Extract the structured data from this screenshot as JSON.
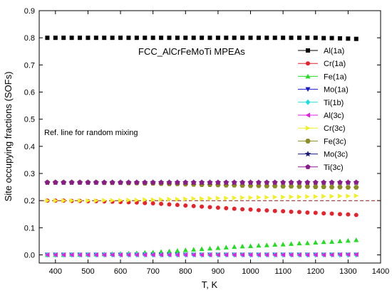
{
  "chart_data": {
    "type": "scatter",
    "title": "FCC_AlCrFeMoTi MPEAs",
    "xlabel": "T, K",
    "ylabel": "Site occupying fractions (SOFs)",
    "xlim": [
      350,
      1400
    ],
    "ylim": [
      -0.03,
      0.9
    ],
    "xticks": [
      400,
      500,
      600,
      700,
      800,
      900,
      1000,
      1100,
      1200,
      1300,
      1400
    ],
    "yticks": [
      0.0,
      0.1,
      0.2,
      0.3,
      0.4,
      0.5,
      0.6,
      0.7,
      0.8,
      0.9
    ],
    "grid": false,
    "legend_position": "top-right",
    "x": [
      375,
      400,
      425,
      450,
      475,
      500,
      525,
      550,
      575,
      600,
      625,
      650,
      675,
      700,
      725,
      750,
      775,
      800,
      825,
      850,
      875,
      900,
      925,
      950,
      975,
      1000,
      1025,
      1050,
      1075,
      1100,
      1125,
      1150,
      1175,
      1200,
      1225,
      1250,
      1275,
      1300,
      1325
    ],
    "reference_line": {
      "label": "Ref. line for random mixing",
      "y": 0.2,
      "color": "#8b1a1a"
    },
    "series": [
      {
        "name": "Al(1a)",
        "marker": "square",
        "color": "#000000",
        "values": [
          0.8,
          0.8,
          0.8,
          0.8,
          0.8,
          0.8,
          0.8,
          0.8,
          0.8,
          0.8,
          0.8,
          0.8,
          0.8,
          0.8,
          0.8,
          0.8,
          0.8,
          0.8,
          0.8,
          0.8,
          0.8,
          0.8,
          0.8,
          0.8,
          0.8,
          0.8,
          0.8,
          0.8,
          0.8,
          0.8,
          0.8,
          0.8,
          0.8,
          0.8,
          0.799,
          0.799,
          0.798,
          0.797,
          0.796
        ]
      },
      {
        "name": "Cr(1a)",
        "marker": "circle",
        "color": "#e8222a",
        "values": [
          0.2,
          0.2,
          0.2,
          0.199,
          0.199,
          0.198,
          0.198,
          0.197,
          0.196,
          0.195,
          0.194,
          0.193,
          0.191,
          0.19,
          0.188,
          0.186,
          0.184,
          0.182,
          0.18,
          0.178,
          0.176,
          0.174,
          0.172,
          0.17,
          0.168,
          0.167,
          0.165,
          0.164,
          0.162,
          0.161,
          0.159,
          0.158,
          0.156,
          0.155,
          0.153,
          0.152,
          0.15,
          0.149,
          0.147
        ]
      },
      {
        "name": "Fe(1a)",
        "marker": "triangle-up",
        "color": "#22dd22",
        "values": [
          0.0,
          0.0,
          0.0,
          0.001,
          0.001,
          0.002,
          0.002,
          0.003,
          0.004,
          0.005,
          0.006,
          0.007,
          0.009,
          0.01,
          0.012,
          0.014,
          0.016,
          0.018,
          0.02,
          0.022,
          0.024,
          0.026,
          0.028,
          0.03,
          0.032,
          0.033,
          0.035,
          0.036,
          0.038,
          0.039,
          0.041,
          0.043,
          0.044,
          0.046,
          0.048,
          0.049,
          0.051,
          0.053,
          0.055
        ]
      },
      {
        "name": "Mo(1a)",
        "marker": "triangle-down",
        "color": "#1a1acc",
        "values": [
          0,
          0,
          0,
          0,
          0,
          0,
          0,
          0,
          0,
          0,
          0,
          0,
          0,
          0,
          0,
          0,
          0,
          0,
          0,
          0,
          0,
          0,
          0,
          0,
          0,
          0,
          0,
          0,
          0,
          0,
          0,
          0,
          0,
          0,
          0,
          0,
          0,
          0,
          0
        ]
      },
      {
        "name": "Ti(1b)",
        "marker": "diamond",
        "color": "#22dddd",
        "values": [
          0,
          0,
          0,
          0,
          0,
          0,
          0,
          0,
          0,
          0,
          0,
          0,
          0,
          0,
          0,
          0,
          0,
          0,
          0,
          0,
          0,
          0,
          0,
          0,
          0,
          0,
          0,
          0,
          0,
          0,
          0,
          0,
          0,
          0,
          0,
          0,
          0,
          0,
          0
        ]
      },
      {
        "name": "Al(3c)",
        "marker": "triangle-left",
        "color": "#e022e0",
        "values": [
          0.0,
          0.0,
          0.0,
          0.0,
          0.0,
          0.0,
          0.0,
          0.0,
          0.0,
          0.0,
          0.0,
          0.0,
          0.0,
          0.0,
          0.0,
          0.0,
          0.0,
          0.0,
          0.0,
          0.0,
          0.0,
          0.0,
          0.0,
          0.0,
          0.0,
          0.0,
          0.0,
          0.0,
          0.0,
          0.0,
          0.0,
          0.0,
          0.0,
          0.0,
          0.0,
          0.0,
          0.001,
          0.001,
          0.001
        ]
      },
      {
        "name": "Cr(3c)",
        "marker": "triangle-right",
        "color": "#f0f022",
        "values": [
          0.2,
          0.2,
          0.2,
          0.2,
          0.2,
          0.2,
          0.2,
          0.201,
          0.201,
          0.201,
          0.202,
          0.202,
          0.203,
          0.203,
          0.204,
          0.205,
          0.205,
          0.206,
          0.207,
          0.207,
          0.208,
          0.209,
          0.209,
          0.21,
          0.211,
          0.211,
          0.212,
          0.212,
          0.213,
          0.213,
          0.214,
          0.214,
          0.215,
          0.215,
          0.216,
          0.216,
          0.217,
          0.217,
          0.218
        ]
      },
      {
        "name": "Fe(3c)",
        "marker": "hexagon",
        "color": "#8b8b22",
        "values": [
          0.267,
          0.267,
          0.267,
          0.267,
          0.267,
          0.267,
          0.267,
          0.266,
          0.266,
          0.266,
          0.265,
          0.265,
          0.264,
          0.264,
          0.263,
          0.262,
          0.262,
          0.261,
          0.26,
          0.259,
          0.259,
          0.258,
          0.257,
          0.257,
          0.256,
          0.255,
          0.255,
          0.254,
          0.254,
          0.253,
          0.253,
          0.252,
          0.252,
          0.251,
          0.251,
          0.25,
          0.25,
          0.249,
          0.249
        ]
      },
      {
        "name": "Mo(3c)",
        "marker": "star",
        "color": "#1a1a7a",
        "values": [
          0.267,
          0.267,
          0.267,
          0.267,
          0.267,
          0.267,
          0.267,
          0.267,
          0.267,
          0.267,
          0.267,
          0.267,
          0.267,
          0.267,
          0.267,
          0.267,
          0.267,
          0.267,
          0.267,
          0.267,
          0.267,
          0.267,
          0.267,
          0.267,
          0.267,
          0.267,
          0.267,
          0.267,
          0.267,
          0.267,
          0.267,
          0.267,
          0.267,
          0.267,
          0.267,
          0.267,
          0.267,
          0.267,
          0.267
        ]
      },
      {
        "name": "Ti(3c)",
        "marker": "pentagon",
        "color": "#8b1a8b",
        "values": [
          0.267,
          0.267,
          0.267,
          0.267,
          0.267,
          0.267,
          0.267,
          0.267,
          0.267,
          0.267,
          0.267,
          0.267,
          0.267,
          0.267,
          0.267,
          0.267,
          0.267,
          0.267,
          0.267,
          0.267,
          0.267,
          0.267,
          0.267,
          0.267,
          0.267,
          0.267,
          0.267,
          0.267,
          0.267,
          0.267,
          0.267,
          0.267,
          0.267,
          0.267,
          0.267,
          0.267,
          0.267,
          0.267,
          0.267
        ]
      }
    ]
  }
}
